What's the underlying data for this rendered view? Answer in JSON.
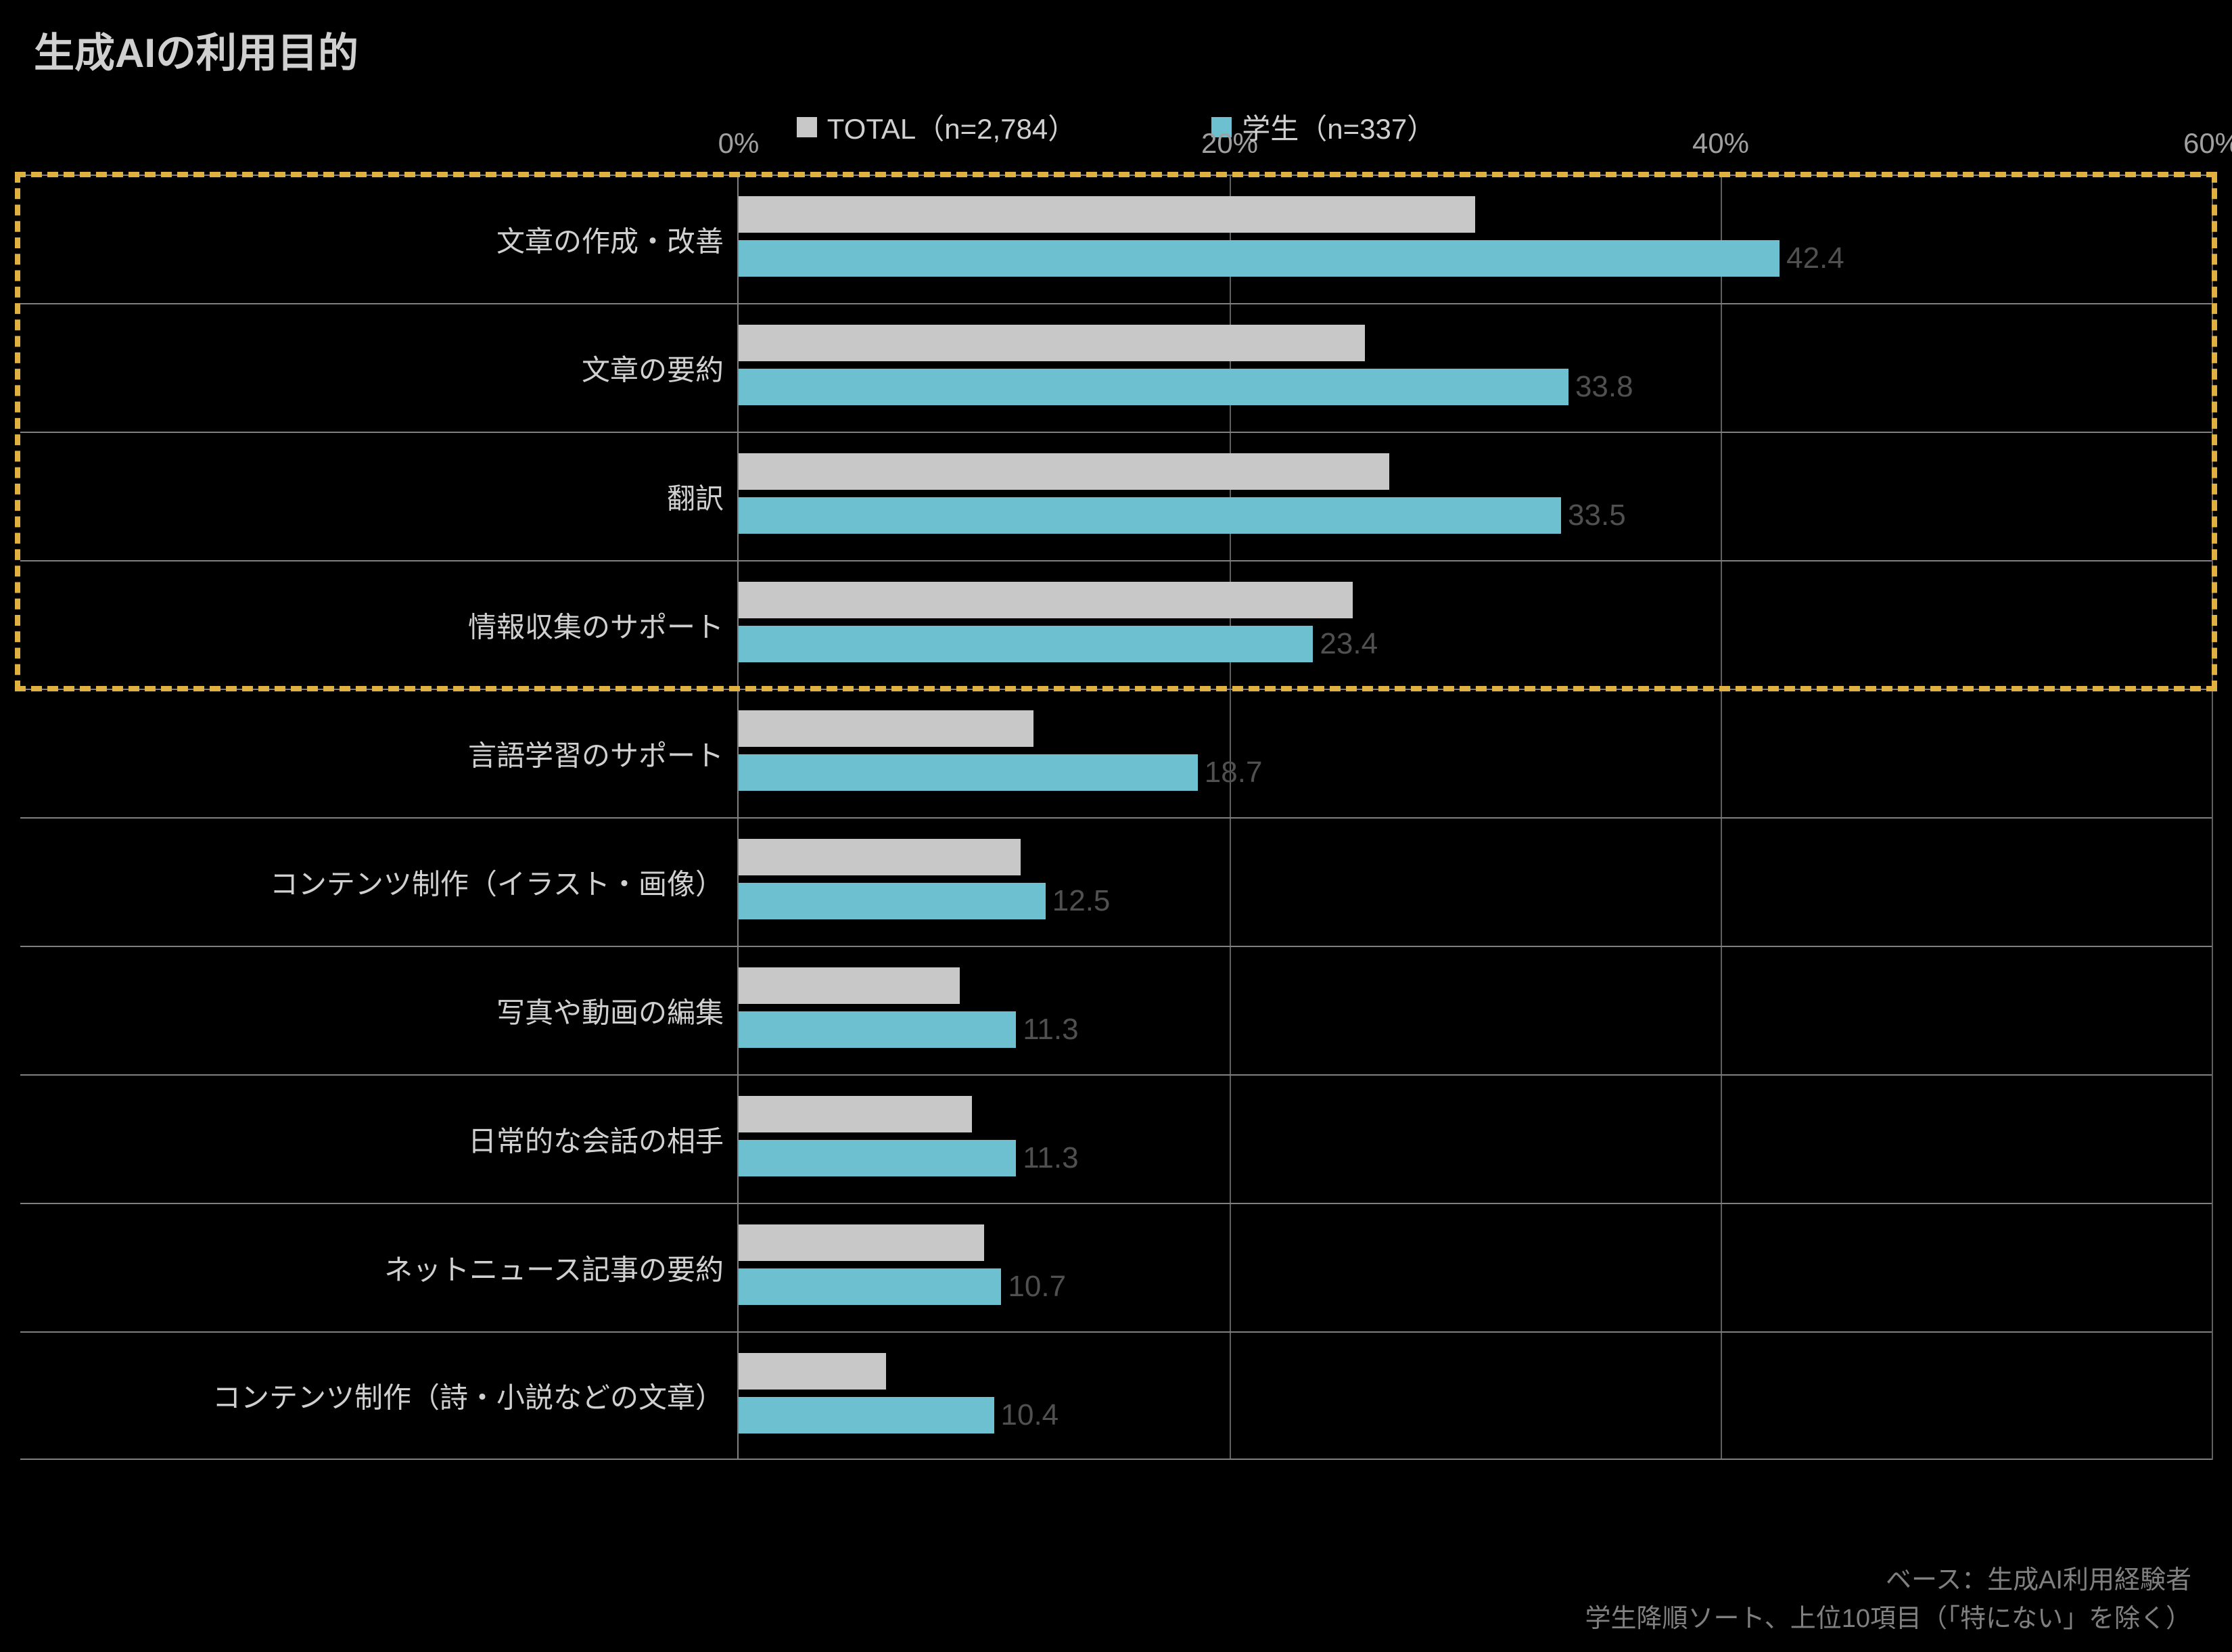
{
  "chart": {
    "type": "grouped-horizontal-bar",
    "title": "生成AIの利用目的",
    "background_color": "#000000",
    "text_color": "#d0d0d0",
    "axis_color": "#808080",
    "gridline_color": "#606060",
    "title_fontsize": 60,
    "label_fontsize": 42,
    "tick_fontsize": 42,
    "value_fontsize": 44,
    "xlim": [
      0,
      60
    ],
    "xtick_step": 20,
    "xtick_labels": [
      "0%",
      "20%",
      "40%",
      "60%"
    ],
    "legend": {
      "items": [
        {
          "label": "TOTAL（n=2,784）",
          "color": "#c8c8c8"
        },
        {
          "label": "学生（n=337）",
          "color": "#6cc0d0"
        }
      ]
    },
    "series": {
      "total": {
        "name": "TOTAL",
        "color": "#c8c8c8",
        "show_values": false
      },
      "student": {
        "name": "学生",
        "color": "#6cc0d0",
        "show_values": true,
        "value_color": "#505050"
      }
    },
    "categories": [
      {
        "label": "文章の作成・改善",
        "total": 30.0,
        "student": 42.4
      },
      {
        "label": "文章の要約",
        "total": 25.5,
        "student": 33.8
      },
      {
        "label": "翻訳",
        "total": 26.5,
        "student": 33.5
      },
      {
        "label": "情報収集のサポート",
        "total": 25.0,
        "student": 23.4
      },
      {
        "label": "言語学習のサポート",
        "total": 12.0,
        "student": 18.7
      },
      {
        "label": "コンテンツ制作（イラスト・画像）",
        "total": 11.5,
        "student": 12.5
      },
      {
        "label": "写真や動画の編集",
        "total": 9.0,
        "student": 11.3
      },
      {
        "label": "日常的な会話の相手",
        "total": 9.5,
        "student": 11.3
      },
      {
        "label": "ネットニュース記事の要約",
        "total": 10.0,
        "student": 10.7
      },
      {
        "label": "コンテンツ制作（詩・小説などの文章）",
        "total": 6.0,
        "student": 10.4
      }
    ],
    "highlight": {
      "enabled": true,
      "rows_from": 0,
      "rows_to": 3,
      "border_color": "#e0b040",
      "border_width": 8,
      "border_style": "dashed"
    },
    "footer": {
      "line1": "ベース：生成AI利用経験者",
      "line2": "学生降順ソート、上位10項目（「特にない」を除く）",
      "color": "#808080",
      "fontsize": 38
    }
  }
}
